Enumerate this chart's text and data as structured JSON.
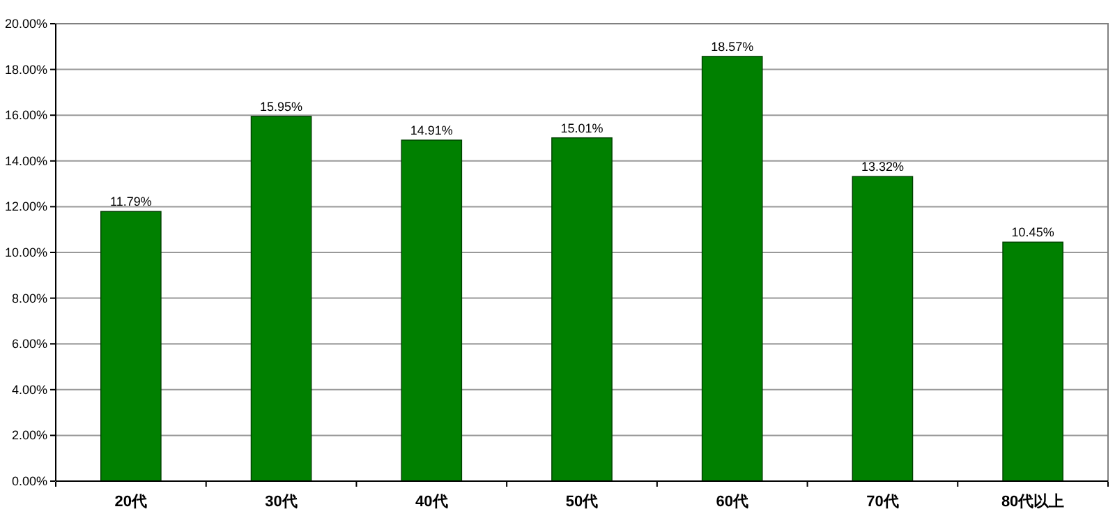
{
  "chart_data": {
    "type": "bar",
    "categories": [
      "20代",
      "30代",
      "40代",
      "50代",
      "60代",
      "70代",
      "80代以上"
    ],
    "values": [
      11.79,
      15.95,
      14.91,
      15.01,
      18.57,
      13.32,
      10.45
    ],
    "value_labels": [
      "11.79%",
      "15.95%",
      "14.91%",
      "15.01%",
      "18.57%",
      "13.32%",
      "10.45%"
    ],
    "color": "#008000",
    "ylim": [
      0,
      20
    ],
    "yticks": [
      {
        "value": 0,
        "label": "0.00%"
      },
      {
        "value": 2,
        "label": "2.00%"
      },
      {
        "value": 4,
        "label": "4.00%"
      },
      {
        "value": 6,
        "label": "6.00%"
      },
      {
        "value": 8,
        "label": "8.00%"
      },
      {
        "value": 10,
        "label": "10.00%"
      },
      {
        "value": 12,
        "label": "12.00%"
      },
      {
        "value": 14,
        "label": "14.00%"
      },
      {
        "value": 16,
        "label": "16.00%"
      },
      {
        "value": 18,
        "label": "18.00%"
      },
      {
        "value": 20,
        "label": "20.00%"
      }
    ],
    "grid": "y"
  }
}
